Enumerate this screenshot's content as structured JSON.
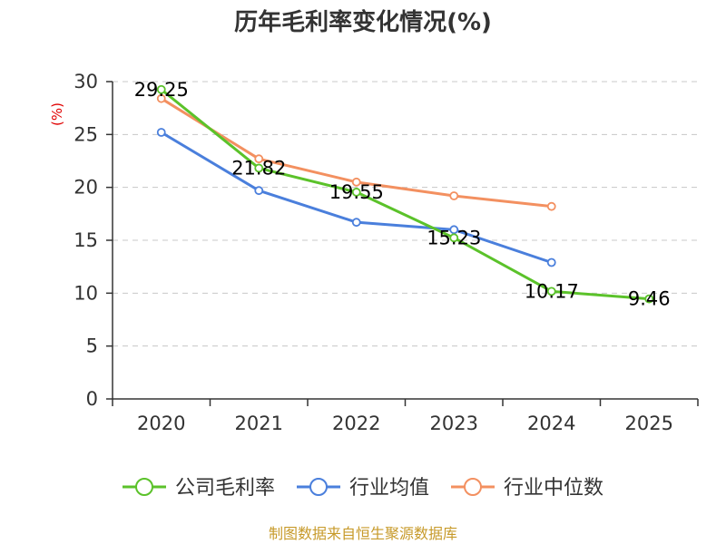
{
  "chart_data": {
    "type": "line",
    "title": "历年毛利率变化情况(%)",
    "ylabel": "(%)",
    "xlabel": "",
    "categories": [
      "2020",
      "2021",
      "2022",
      "2023",
      "2024",
      "2025"
    ],
    "ylim": [
      0,
      30
    ],
    "yticks": [
      0,
      5,
      10,
      15,
      20,
      25,
      30
    ],
    "grid": true,
    "legend_position": "bottom",
    "series": [
      {
        "name": "公司毛利率",
        "color": "#5bc22a",
        "values": [
          29.25,
          21.82,
          19.55,
          15.23,
          10.17,
          9.46
        ],
        "labels": [
          "29.25",
          "21.82",
          "19.55",
          "15.23",
          "10.17",
          "9.46"
        ]
      },
      {
        "name": "行业均值",
        "color": "#4a7fdc",
        "values": [
          25.2,
          19.7,
          16.7,
          16.0,
          12.9,
          null
        ]
      },
      {
        "name": "行业中位数",
        "color": "#f39060",
        "values": [
          28.4,
          22.7,
          20.5,
          19.2,
          18.2,
          null
        ]
      }
    ]
  },
  "source": "制图数据来自恒生聚源数据库"
}
